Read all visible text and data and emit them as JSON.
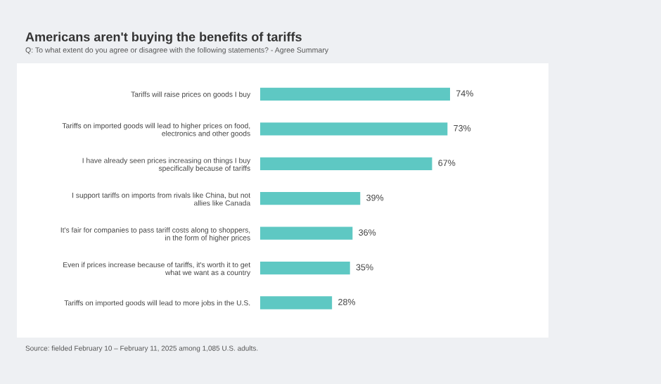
{
  "chart_data": {
    "type": "bar",
    "orientation": "horizontal",
    "title": "Americans aren't buying the benefits of tariffs",
    "subtitle": "Q: To what extent do you agree or disagree with the following statements? - Agree Summary",
    "categories": [
      "Tariffs will raise prices on goods I buy",
      "Tariffs on imported goods will lead to higher prices on food,\nelectronics and other goods",
      "I have already seen prices increasing on things I buy\nspecifically because of tariffs",
      "I support tariffs on imports from rivals like China, but not\nallies like Canada",
      "It's fair for companies to pass tariff costs along to shoppers,\nin the form of higher prices",
      "Even if prices increase because of tariffs, it's worth it to get\nwhat we want as a country",
      "Tariffs on imported goods will lead to more jobs in the U.S."
    ],
    "values": [
      74,
      73,
      67,
      39,
      36,
      35,
      28
    ],
    "value_labels": [
      "74%",
      "73%",
      "67%",
      "39%",
      "36%",
      "35%",
      "28%"
    ],
    "color": "#5ec8c3",
    "annotations": [
      "Source: fielded February 10 – February 11, 2025 among 1,085 U.S. adults."
    ]
  }
}
